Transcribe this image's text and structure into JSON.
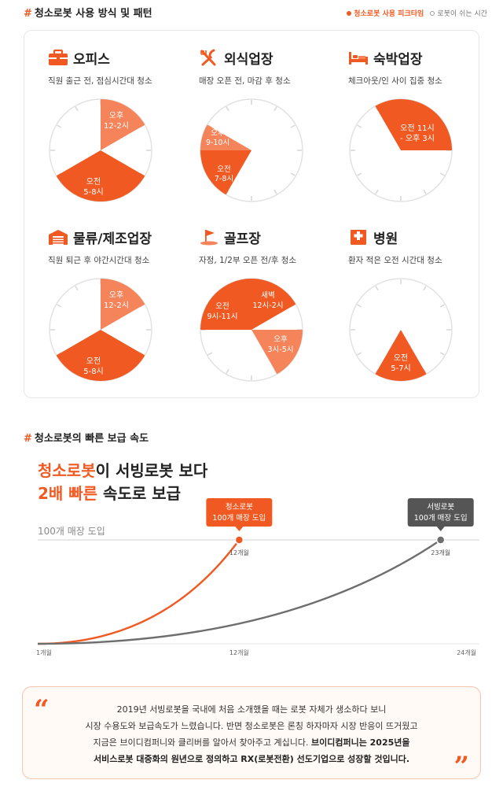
{
  "section1": {
    "hash": "#",
    "title": "청소로봇 사용 방식 및 패턴",
    "legend_peak": "청소로봇 사용 피크타임",
    "legend_rest": "로봇이 쉬는 시간"
  },
  "colors": {
    "accent": "#f05a22",
    "accent_light": "#f6845a",
    "rest": "#ffffff",
    "tick": "#d6d6d6",
    "line_gray": "#6e6e6e"
  },
  "industries": [
    {
      "name": "오피스",
      "icon": "briefcase-icon",
      "desc": "직원 출근 전, 점심시간대 청소",
      "slots": [
        {
          "label": [
            "오후",
            "12-2시"
          ],
          "shade": "light"
        },
        {
          "label": [
            "오전",
            "5-8시"
          ],
          "shade": "dark"
        }
      ]
    },
    {
      "name": "외식업장",
      "icon": "fork-knife-icon",
      "desc": "매장 오픈 전, 마감 후 청소",
      "slots": [
        {
          "label": [
            "오후",
            "9-10시"
          ],
          "shade": "light"
        },
        {
          "label": [
            "오전",
            "7-8시"
          ],
          "shade": "dark"
        }
      ]
    },
    {
      "name": "숙박업장",
      "icon": "bed-icon",
      "desc": "체크아웃/인 사이 집중 청소",
      "slots": [
        {
          "label": [
            "오전 11시",
            "- 오후 3시"
          ],
          "shade": "dark"
        }
      ]
    },
    {
      "name": "물류/제조업장",
      "icon": "warehouse-icon",
      "desc": "직원 퇴근 후 야간시간대 청소",
      "slots": [
        {
          "label": [
            "오후",
            "12-2시"
          ],
          "shade": "light"
        },
        {
          "label": [
            "오전",
            "5-8시"
          ],
          "shade": "dark"
        }
      ]
    },
    {
      "name": "골프장",
      "icon": "golf-flag-icon",
      "desc": "자정, 1/2부 오픈 전/후 청소",
      "slots": [
        {
          "label": [
            "새벽",
            "12시-2시"
          ],
          "shade": "dark"
        },
        {
          "label": [
            "오후",
            "3시-5시"
          ],
          "shade": "light"
        },
        {
          "label": [
            "오전",
            "9시-11시"
          ],
          "shade": "dark"
        }
      ]
    },
    {
      "name": "병원",
      "icon": "hospital-cross-icon",
      "desc": "환자 적은 오전 시간대 청소",
      "slots": [
        {
          "label": [
            "오전",
            "5-7시"
          ],
          "shade": "dark"
        }
      ]
    }
  ],
  "section2": {
    "hash": "#",
    "title": "청소로봇의 빠른 보급 속도",
    "headline_1_em": "청소로봇",
    "headline_1_rest": "이 서빙로봇 보다",
    "headline_2_em": "2배 빠른",
    "headline_2_rest": " 속도로 보급"
  },
  "chart_data": {
    "type": "line",
    "title": "",
    "xlabel": "",
    "ylabel": "",
    "x_ticks": [
      "1개월",
      "12개월",
      "24개월"
    ],
    "target_label": "100개 매장 도입",
    "series": [
      {
        "name": "청소로봇",
        "x": [
          1,
          12
        ],
        "y": [
          0,
          100
        ],
        "callout": [
          "청소로봇",
          "100개 매장 도입"
        ],
        "end_label": "12개월"
      },
      {
        "name": "서빙로봇",
        "x": [
          1,
          23
        ],
        "y": [
          0,
          100
        ],
        "callout": [
          "서빙로봇",
          "100개 매장 도입"
        ],
        "end_label": "23개월"
      }
    ]
  },
  "quote": {
    "line1": "2019년 서빙로봇을 국내에 처음 소개했을 때는 로봇 자체가 생소하다 보니",
    "line2": "시장 수용도와 보급속도가 느렸습니다. 반면 청소로봇은 론칭 하자마자 시장 반응이 뜨거웠고",
    "line3": "지금은 브이디컴퍼니와 클리버를 알아서 찾아주고 계십니다. ",
    "line3_bold": "브이디컴퍼니는 2025년을",
    "line4_bold": "서비스로봇 대중화의 원년으로 정의하고 RX(로봇전환) 선도기업으로 성장할 것입니다.",
    "open_mark": "“",
    "close_mark": "”"
  }
}
